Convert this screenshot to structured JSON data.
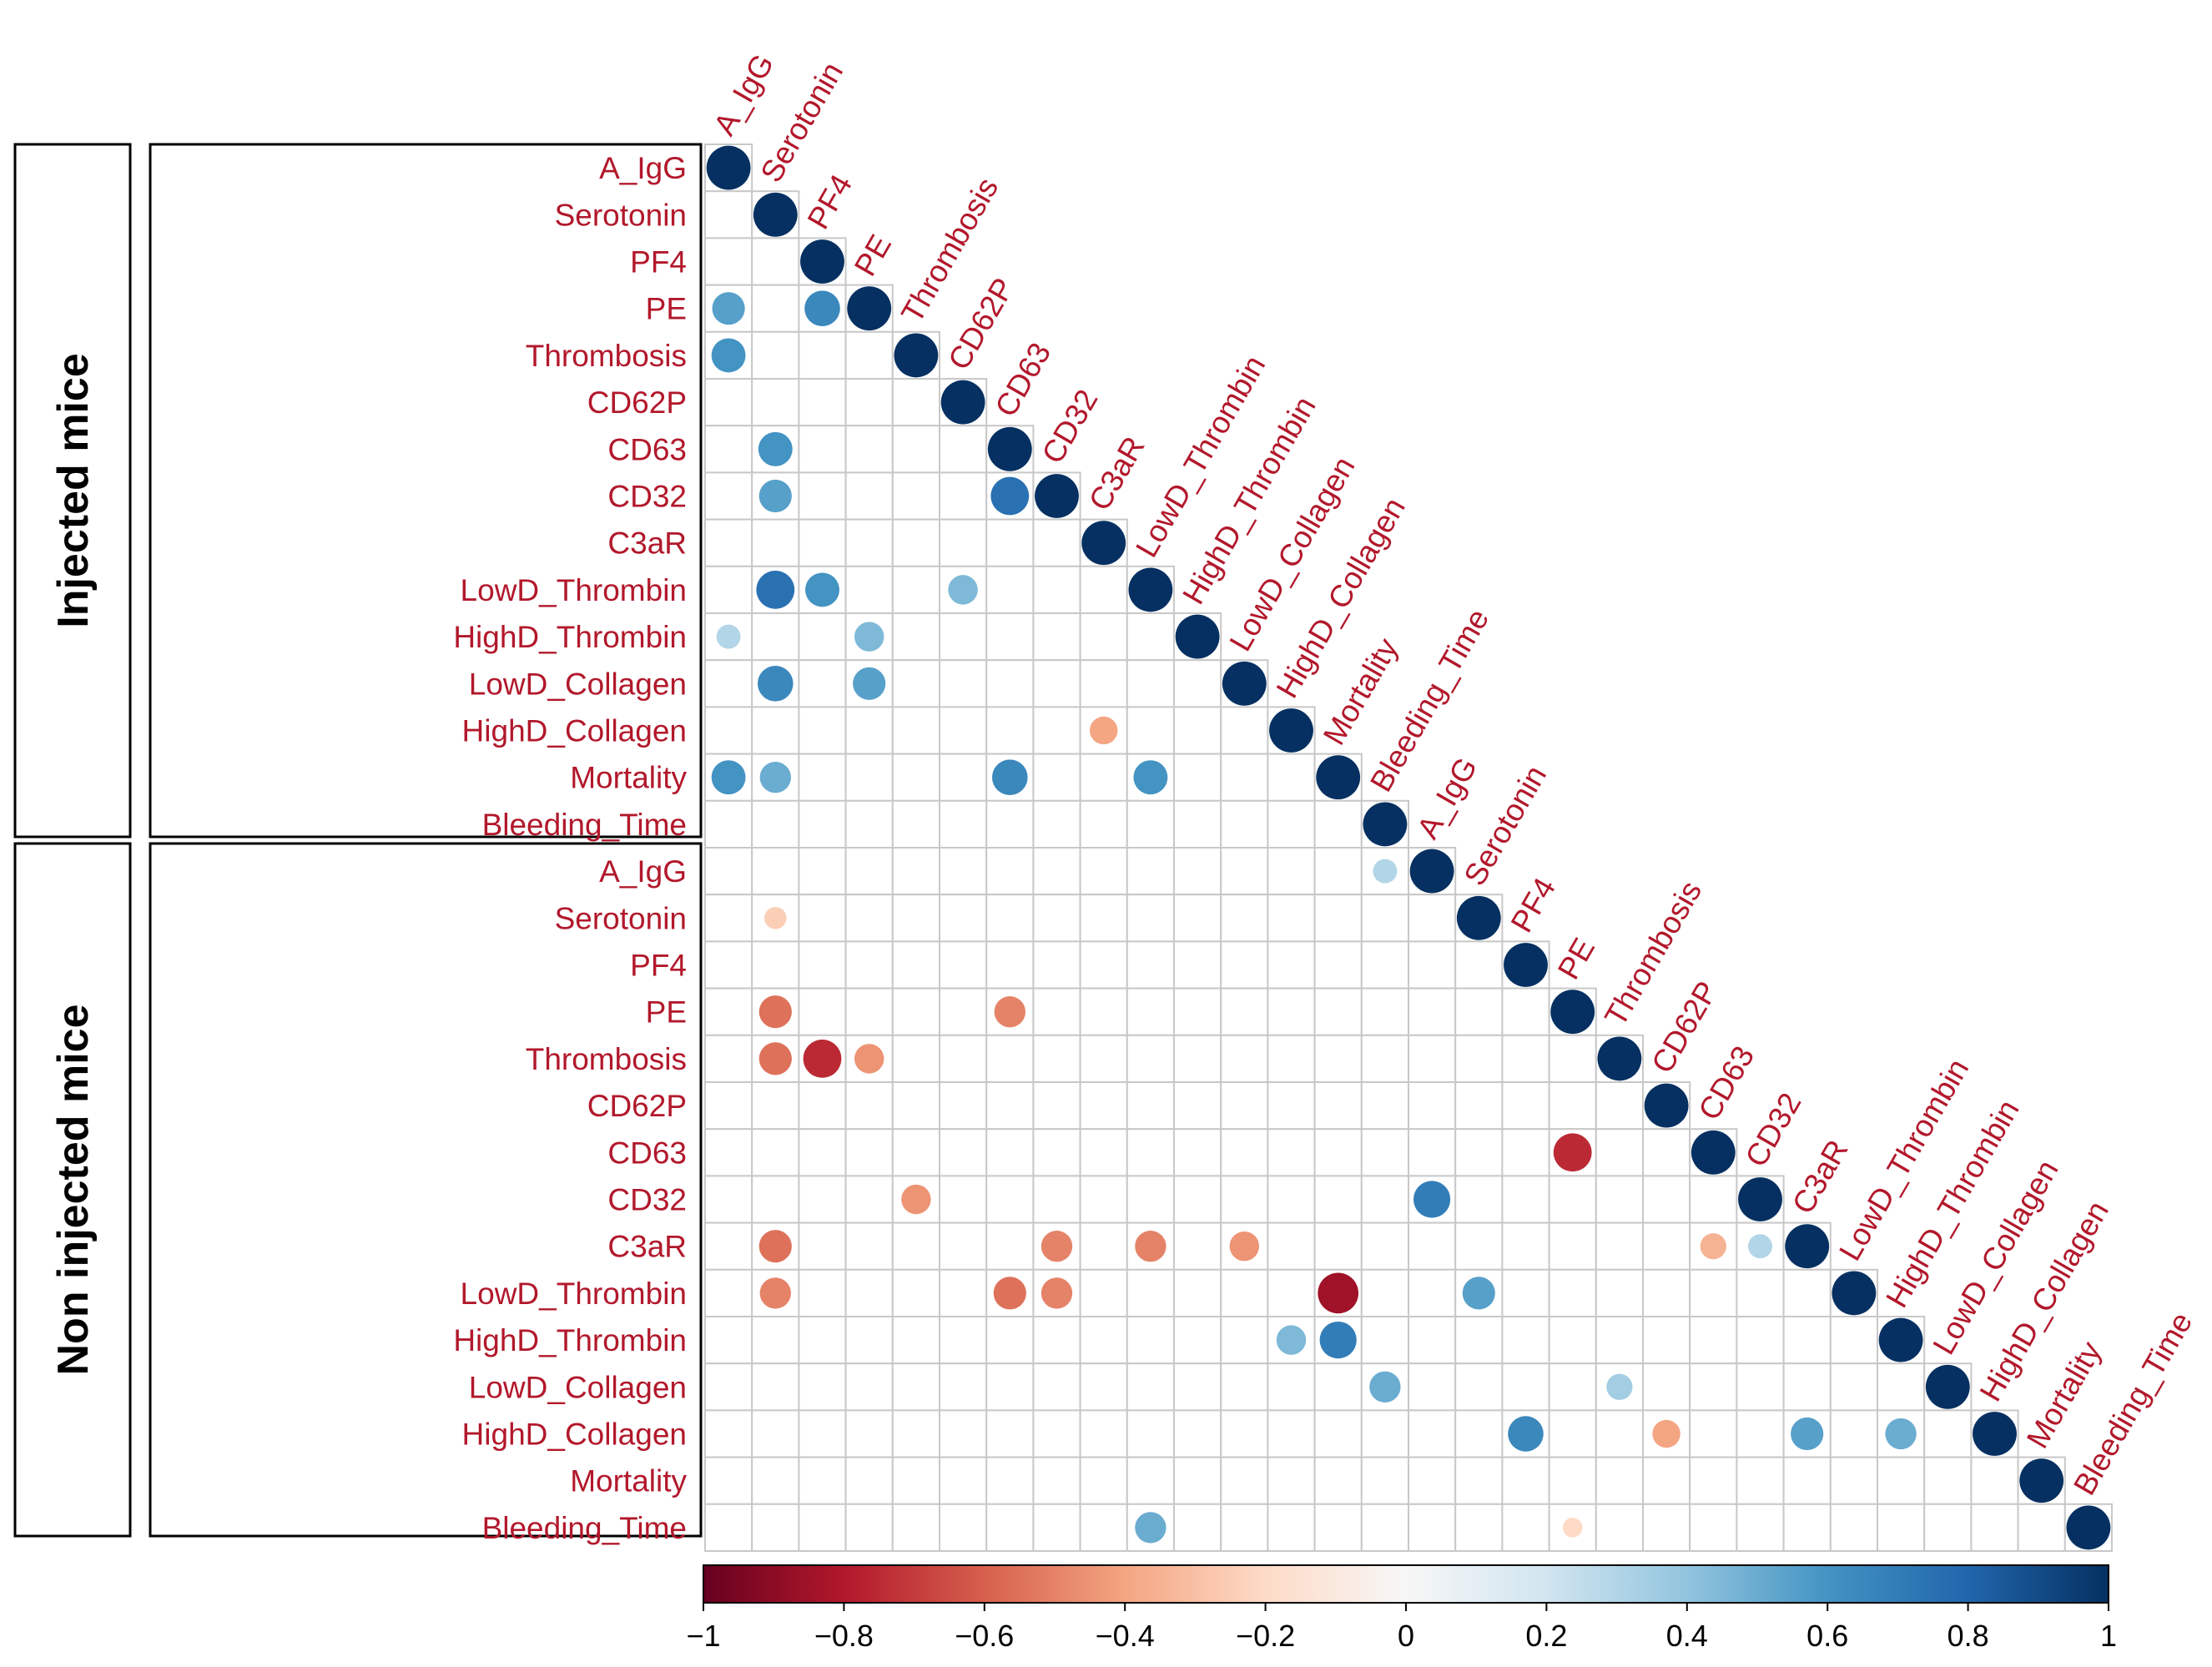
{
  "chart_data": {
    "type": "heatmap",
    "style": "correlation-circle-lower-triangle",
    "title": "",
    "variables": [
      "A_IgG",
      "Serotonin",
      "PF4",
      "PE",
      "Thrombosis",
      "CD62P",
      "CD63",
      "CD32",
      "C3aR",
      "LowD_Thrombin",
      "HighD_Thrombin",
      "LowD_Collagen",
      "HighD_Collagen",
      "Mortality",
      "Bleeding_Time"
    ],
    "groups": [
      {
        "name": "Injected mice",
        "variables": [
          "A_IgG",
          "Serotonin",
          "PF4",
          "PE",
          "Thrombosis",
          "CD62P",
          "CD63",
          "CD32",
          "C3aR",
          "LowD_Thrombin",
          "HighD_Thrombin",
          "LowD_Collagen",
          "HighD_Collagen",
          "Mortality",
          "Bleeding_Time"
        ]
      },
      {
        "name": "Non injected mice",
        "variables": [
          "A_IgG",
          "Serotonin",
          "PF4",
          "PE",
          "Thrombosis",
          "CD62P",
          "CD63",
          "CD32",
          "C3aR",
          "LowD_Thrombin",
          "HighD_Thrombin",
          "LowD_Collagen",
          "HighD_Collagen",
          "Mortality",
          "Bleeding_Time"
        ]
      }
    ],
    "axis_labels": [
      "Injected mice: A_IgG",
      "Injected mice: Serotonin",
      "Injected mice: PF4",
      "Injected mice: PE",
      "Injected mice: Thrombosis",
      "Injected mice: CD62P",
      "Injected mice: CD63",
      "Injected mice: CD32",
      "Injected mice: C3aR",
      "Injected mice: LowD_Thrombin",
      "Injected mice: HighD_Thrombin",
      "Injected mice: LowD_Collagen",
      "Injected mice: HighD_Collagen",
      "Injected mice: Mortality",
      "Injected mice: Bleeding_Time",
      "Non injected mice: A_IgG",
      "Non injected mice: Serotonin",
      "Non injected mice: PF4",
      "Non injected mice: PE",
      "Non injected mice: Thrombosis",
      "Non injected mice: CD62P",
      "Non injected mice: CD63",
      "Non injected mice: CD32",
      "Non injected mice: C3aR",
      "Non injected mice: LowD_Thrombin",
      "Non injected mice: HighD_Thrombin",
      "Non injected mice: LowD_Collagen",
      "Non injected mice: HighD_Collagen",
      "Non injected mice: Mortality",
      "Non injected mice: Bleeding_Time"
    ],
    "cells": [
      {
        "row": 3,
        "col": 0,
        "value": 0.55
      },
      {
        "row": 3,
        "col": 2,
        "value": 0.65
      },
      {
        "row": 4,
        "col": 0,
        "value": 0.6
      },
      {
        "row": 6,
        "col": 1,
        "value": 0.6
      },
      {
        "row": 7,
        "col": 1,
        "value": 0.55
      },
      {
        "row": 7,
        "col": 6,
        "value": 0.75
      },
      {
        "row": 9,
        "col": 1,
        "value": 0.75
      },
      {
        "row": 9,
        "col": 2,
        "value": 0.6
      },
      {
        "row": 9,
        "col": 5,
        "value": 0.45
      },
      {
        "row": 10,
        "col": 0,
        "value": 0.3
      },
      {
        "row": 10,
        "col": 3,
        "value": 0.45
      },
      {
        "row": 11,
        "col": 1,
        "value": 0.65
      },
      {
        "row": 11,
        "col": 3,
        "value": 0.55
      },
      {
        "row": 12,
        "col": 8,
        "value": -0.4
      },
      {
        "row": 13,
        "col": 0,
        "value": 0.6
      },
      {
        "row": 13,
        "col": 1,
        "value": 0.5
      },
      {
        "row": 13,
        "col": 6,
        "value": 0.65
      },
      {
        "row": 13,
        "col": 9,
        "value": 0.6
      },
      {
        "row": 15,
        "col": 14,
        "value": 0.3
      },
      {
        "row": 16,
        "col": 1,
        "value": -0.25
      },
      {
        "row": 18,
        "col": 1,
        "value": -0.55
      },
      {
        "row": 18,
        "col": 6,
        "value": -0.5
      },
      {
        "row": 19,
        "col": 1,
        "value": -0.55
      },
      {
        "row": 19,
        "col": 2,
        "value": -0.75
      },
      {
        "row": 19,
        "col": 3,
        "value": -0.45
      },
      {
        "row": 21,
        "col": 18,
        "value": -0.75
      },
      {
        "row": 22,
        "col": 4,
        "value": -0.45
      },
      {
        "row": 22,
        "col": 15,
        "value": 0.7
      },
      {
        "row": 23,
        "col": 1,
        "value": -0.55
      },
      {
        "row": 23,
        "col": 7,
        "value": -0.5
      },
      {
        "row": 23,
        "col": 9,
        "value": -0.5
      },
      {
        "row": 23,
        "col": 11,
        "value": -0.45
      },
      {
        "row": 23,
        "col": 21,
        "value": -0.35
      },
      {
        "row": 23,
        "col": 22,
        "value": 0.3
      },
      {
        "row": 24,
        "col": 1,
        "value": -0.5
      },
      {
        "row": 24,
        "col": 6,
        "value": -0.55
      },
      {
        "row": 24,
        "col": 7,
        "value": -0.5
      },
      {
        "row": 24,
        "col": 13,
        "value": -0.85
      },
      {
        "row": 24,
        "col": 16,
        "value": 0.55
      },
      {
        "row": 25,
        "col": 12,
        "value": 0.45
      },
      {
        "row": 25,
        "col": 13,
        "value": 0.7
      },
      {
        "row": 26,
        "col": 14,
        "value": 0.5
      },
      {
        "row": 26,
        "col": 19,
        "value": 0.35
      },
      {
        "row": 27,
        "col": 17,
        "value": 0.65
      },
      {
        "row": 27,
        "col": 20,
        "value": -0.4
      },
      {
        "row": 27,
        "col": 23,
        "value": 0.55
      },
      {
        "row": 27,
        "col": 25,
        "value": 0.5
      },
      {
        "row": 29,
        "col": 9,
        "value": 0.5
      },
      {
        "row": 29,
        "col": 18,
        "value": -0.2
      }
    ],
    "diagonal_value": 1,
    "colorbar": {
      "range": [
        -1,
        1
      ],
      "ticks": [
        "−1",
        "−0.8",
        "−0.6",
        "−0.4",
        "−0.2",
        "0",
        "0.2",
        "0.4",
        "0.6",
        "0.8",
        "1"
      ],
      "low_color": "#67001f",
      "mid_color": "#f7f7f7",
      "high_color": "#053061",
      "placement": "bottom"
    },
    "label_color": "#b2182b"
  }
}
